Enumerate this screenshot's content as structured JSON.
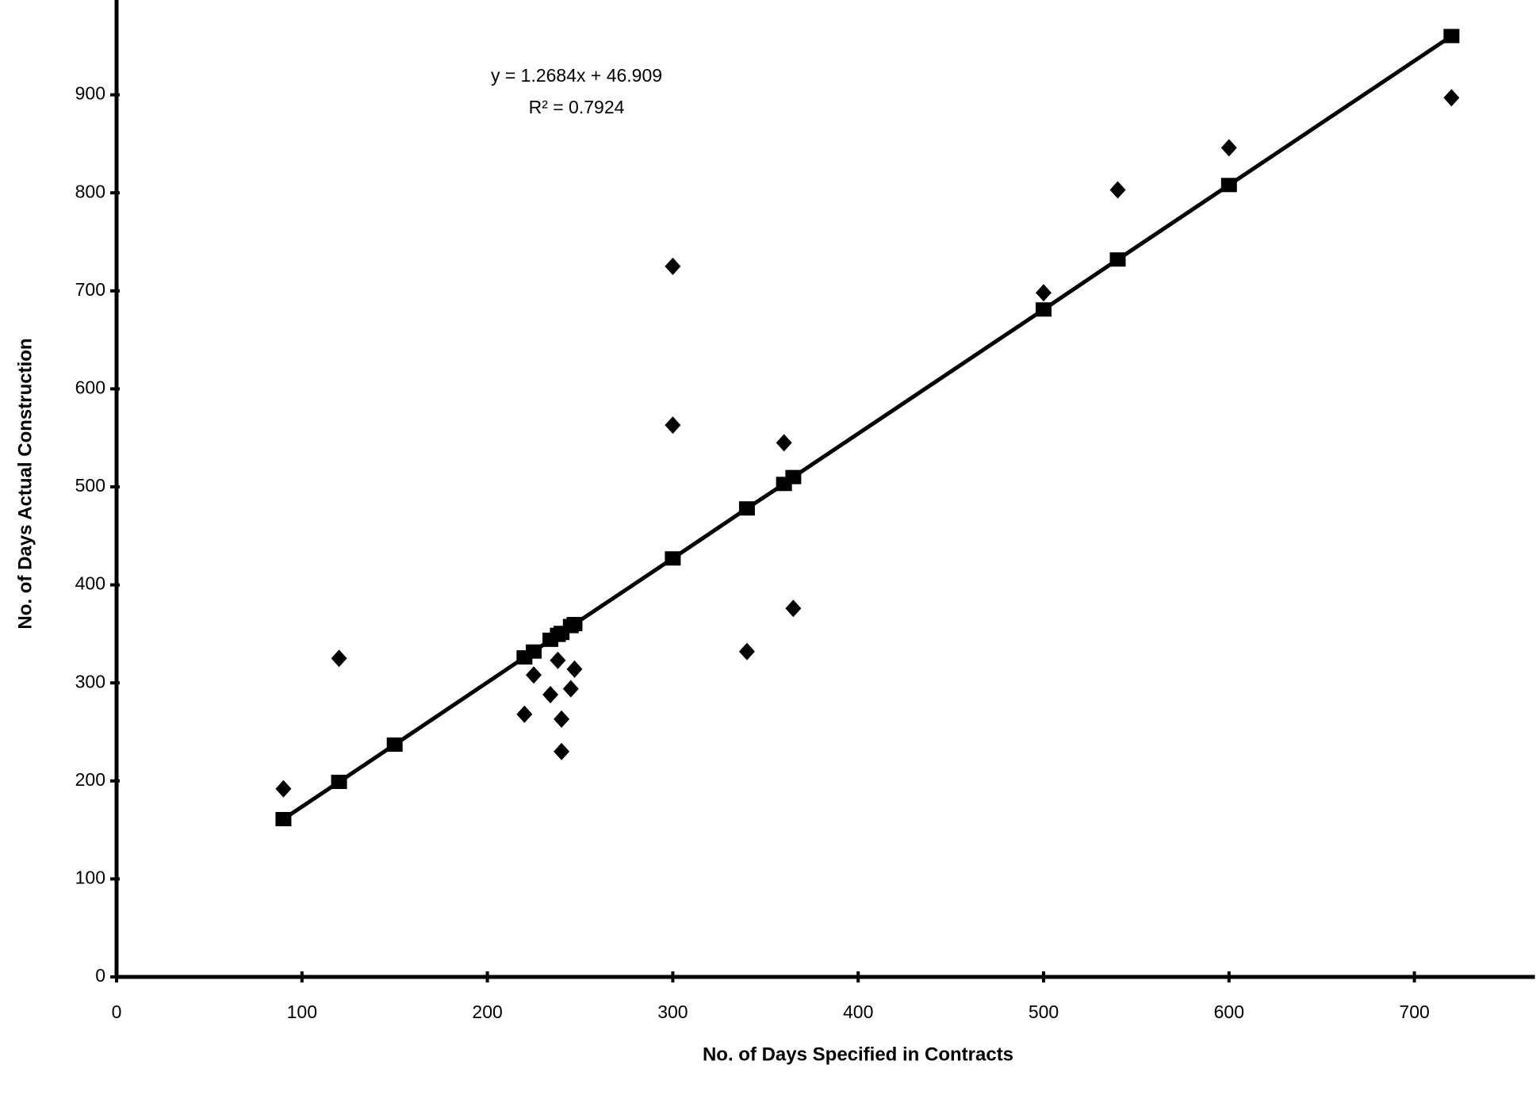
{
  "chart_data": {
    "type": "scatter",
    "x_label": "No. of Days Specified in Contracts",
    "y_label": "No. of Days Actual Construction",
    "annotations": [
      "y = 1.2684x + 46.909",
      "R² = 0.7924"
    ],
    "xlim": [
      0,
      765
    ],
    "ylim": [
      0,
      1000
    ],
    "xticks": [
      0,
      100,
      200,
      300,
      400,
      500,
      600,
      700
    ],
    "yticks": [
      0,
      100,
      200,
      300,
      400,
      500,
      600,
      700,
      800,
      900
    ],
    "color": "#000000",
    "series": [
      {
        "marker": "diamond",
        "line": false,
        "x": [
          90,
          120,
          220,
          225,
          234,
          238,
          240,
          240,
          245,
          247,
          300,
          300,
          340,
          360,
          365,
          500,
          540,
          600,
          720
        ],
        "values": [
          192,
          325,
          268,
          308,
          288,
          323,
          263,
          230,
          294,
          314,
          725,
          563,
          332,
          545,
          376,
          698,
          803,
          846,
          897
        ]
      },
      {
        "marker": "square",
        "line": true,
        "x": [
          90,
          120,
          150,
          220,
          225,
          234,
          238,
          240,
          245,
          247,
          300,
          340,
          360,
          365,
          500,
          540,
          600,
          720
        ],
        "values": [
          161,
          199,
          237,
          326,
          332,
          344,
          349,
          351,
          358,
          360,
          427,
          478,
          503,
          510,
          681,
          732,
          808,
          960
        ]
      }
    ]
  }
}
